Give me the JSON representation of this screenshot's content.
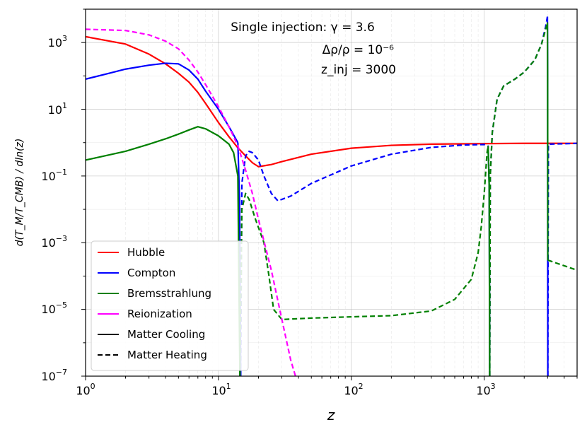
{
  "chart_data": {
    "type": "line",
    "title": "",
    "xlabel": "z",
    "ylabel": "d(T_M/T_CMB) / dln(z)",
    "xscale": "log",
    "yscale": "log",
    "xlim": [
      1,
      5000
    ],
    "ylim": [
      1e-07,
      10000
    ],
    "grid": true,
    "legend_position": "lower-left",
    "annotations": {
      "line1": "Single injection: γ = 3.6",
      "line2": "Δρ/ρ = 10⁻⁶",
      "line3": "z_inj = 3000"
    },
    "x_ticks": [
      {
        "base": "10",
        "exp": "0",
        "value": 1
      },
      {
        "base": "10",
        "exp": "1",
        "value": 10
      },
      {
        "base": "10",
        "exp": "2",
        "value": 100
      },
      {
        "base": "10",
        "exp": "3",
        "value": 1000
      }
    ],
    "y_ticks": [
      {
        "base": "10",
        "exp": "3",
        "value": 1000
      },
      {
        "base": "10",
        "exp": "1",
        "value": 10
      },
      {
        "base": "10",
        "exp": "−1",
        "value": 0.1
      },
      {
        "base": "10",
        "exp": "−3",
        "value": 0.001
      },
      {
        "base": "10",
        "exp": "−5",
        "value": 1e-05
      },
      {
        "base": "10",
        "exp": "−7",
        "value": 1e-07
      }
    ],
    "legend": [
      {
        "label": "Hubble",
        "color": "#ff0000",
        "dash": false
      },
      {
        "label": "Compton",
        "color": "#0000ff",
        "dash": false
      },
      {
        "label": "Bremsstrahlung",
        "color": "#008000",
        "dash": false
      },
      {
        "label": "Reionization",
        "color": "#ff00ff",
        "dash": false
      },
      {
        "label": "Matter Cooling",
        "color": "#000000",
        "dash": false
      },
      {
        "label": "Matter Heating",
        "color": "#000000",
        "dash": true
      }
    ],
    "series": [
      {
        "name": "Hubble",
        "color": "#ff0000",
        "segments": [
          {
            "dash": false,
            "points": [
              [
                1,
                1500
              ],
              [
                2,
                900
              ],
              [
                3,
                450
              ],
              [
                4,
                230
              ],
              [
                5,
                120
              ],
              [
                6,
                65
              ],
              [
                7,
                32
              ],
              [
                8,
                15
              ],
              [
                10,
                4
              ],
              [
                12,
                1.5
              ],
              [
                14,
                0.7
              ],
              [
                16,
                0.4
              ],
              [
                18,
                0.25
              ],
              [
                20,
                0.19
              ],
              [
                25,
                0.22
              ],
              [
                30,
                0.27
              ],
              [
                50,
                0.45
              ],
              [
                100,
                0.68
              ],
              [
                200,
                0.83
              ],
              [
                400,
                0.9
              ],
              [
                1000,
                0.93
              ],
              [
                2000,
                0.95
              ],
              [
                5000,
                0.95
              ]
            ]
          }
        ]
      },
      {
        "name": "Compton",
        "color": "#0000ff",
        "segments": [
          {
            "dash": false,
            "points": [
              [
                1,
                80
              ],
              [
                1.5,
                120
              ],
              [
                2,
                160
              ],
              [
                3,
                210
              ],
              [
                4,
                240
              ],
              [
                5,
                230
              ],
              [
                6,
                150
              ],
              [
                7,
                80
              ],
              [
                8,
                35
              ],
              [
                10,
                10
              ],
              [
                12,
                3
              ],
              [
                14,
                1
              ]
            ]
          },
          {
            "dash": false,
            "points": [
              [
                14,
                1
              ],
              [
                14.4,
                0.02
              ],
              [
                14.7,
                1e-07
              ]
            ]
          },
          {
            "dash": true,
            "points": [
              [
                14.7,
                1e-07
              ],
              [
                15,
                0.06
              ],
              [
                16,
                0.4
              ],
              [
                17,
                0.55
              ],
              [
                18,
                0.5
              ],
              [
                20,
                0.3
              ],
              [
                22,
                0.1
              ],
              [
                25,
                0.03
              ],
              [
                28,
                0.018
              ],
              [
                35,
                0.025
              ],
              [
                50,
                0.06
              ],
              [
                100,
                0.2
              ],
              [
                200,
                0.45
              ],
              [
                400,
                0.72
              ],
              [
                700,
                0.85
              ],
              [
                1000,
                0.88
              ],
              [
                1070,
                0.8
              ]
            ]
          },
          {
            "dash": false,
            "points": [
              [
                1070,
                0.8
              ],
              [
                1090,
                0.05
              ],
              [
                1100,
                1e-07
              ]
            ]
          },
          {
            "dash": true,
            "points": [
              [
                1100,
                1e-07
              ],
              [
                1110,
                0.1
              ],
              [
                1150,
                2
              ],
              [
                1250,
                20
              ],
              [
                1400,
                50
              ],
              [
                1700,
                80
              ],
              [
                2000,
                130
              ],
              [
                2400,
                300
              ],
              [
                2700,
                900
              ],
              [
                2900,
                3000
              ],
              [
                2990,
                6000
              ]
            ]
          },
          {
            "dash": false,
            "points": [
              [
                2990,
                6000
              ],
              [
                3000,
                100
              ],
              [
                3010,
                1e-07
              ]
            ]
          },
          {
            "dash": true,
            "points": [
              [
                3010,
                1e-07
              ],
              [
                3040,
                0.9
              ],
              [
                5000,
                0.95
              ]
            ]
          }
        ]
      },
      {
        "name": "Bremsstrahlung",
        "color": "#008000",
        "segments": [
          {
            "dash": false,
            "points": [
              [
                1,
                0.3
              ],
              [
                2,
                0.55
              ],
              [
                3,
                0.9
              ],
              [
                4,
                1.3
              ],
              [
                5,
                1.8
              ],
              [
                6,
                2.4
              ],
              [
                7,
                3
              ],
              [
                8,
                2.6
              ],
              [
                10,
                1.6
              ],
              [
                12,
                0.9
              ],
              [
                13,
                0.5
              ],
              [
                14,
                0.1
              ],
              [
                14.5,
                1e-07
              ]
            ]
          },
          {
            "dash": true,
            "points": [
              [
                14.5,
                1e-07
              ],
              [
                15,
                0.01
              ],
              [
                16,
                0.03
              ],
              [
                17,
                0.02
              ],
              [
                19,
                0.005
              ],
              [
                22,
                0.001
              ],
              [
                24,
                0.0001
              ],
              [
                26,
                1e-05
              ],
              [
                30,
                5e-06
              ],
              [
                50,
                5.5e-06
              ],
              [
                100,
                6e-06
              ],
              [
                200,
                6.5e-06
              ],
              [
                400,
                9e-06
              ],
              [
                600,
                2e-05
              ],
              [
                800,
                8e-05
              ],
              [
                900,
                0.0005
              ],
              [
                950,
                0.003
              ],
              [
                1000,
                0.03
              ],
              [
                1050,
                0.5
              ],
              [
                1070,
                0.8
              ]
            ]
          },
          {
            "dash": false,
            "points": [
              [
                1070,
                0.8
              ],
              [
                1090,
                0.05
              ],
              [
                1100,
                1e-07
              ]
            ]
          },
          {
            "dash": true,
            "points": [
              [
                1100,
                1e-07
              ],
              [
                1110,
                0.1
              ],
              [
                1150,
                2
              ],
              [
                1250,
                20
              ],
              [
                1400,
                50
              ],
              [
                1700,
                80
              ],
              [
                2000,
                130
              ],
              [
                2400,
                300
              ],
              [
                2700,
                900
              ],
              [
                2900,
                2500
              ],
              [
                2990,
                4000
              ]
            ]
          },
          {
            "dash": false,
            "points": [
              [
                2990,
                4000
              ],
              [
                3000,
                100
              ],
              [
                3010,
                0.0003
              ]
            ]
          },
          {
            "dash": true,
            "points": [
              [
                3010,
                0.0003
              ],
              [
                5000,
                0.00015
              ]
            ]
          }
        ]
      },
      {
        "name": "Reionization",
        "color": "#ff00ff",
        "segments": [
          {
            "dash": true,
            "points": [
              [
                1,
                2500
              ],
              [
                2,
                2300
              ],
              [
                3,
                1700
              ],
              [
                4,
                1100
              ],
              [
                5,
                650
              ],
              [
                6,
                300
              ],
              [
                7,
                130
              ],
              [
                8,
                55
              ],
              [
                10,
                12
              ],
              [
                12,
                3
              ],
              [
                14,
                0.8
              ],
              [
                16,
                0.15
              ],
              [
                18,
                0.03
              ],
              [
                20,
                0.005
              ],
              [
                25,
                0.00015
              ],
              [
                30,
                5e-06
              ],
              [
                35,
                3e-07
              ],
              [
                38,
                1e-07
              ]
            ]
          }
        ]
      }
    ]
  }
}
